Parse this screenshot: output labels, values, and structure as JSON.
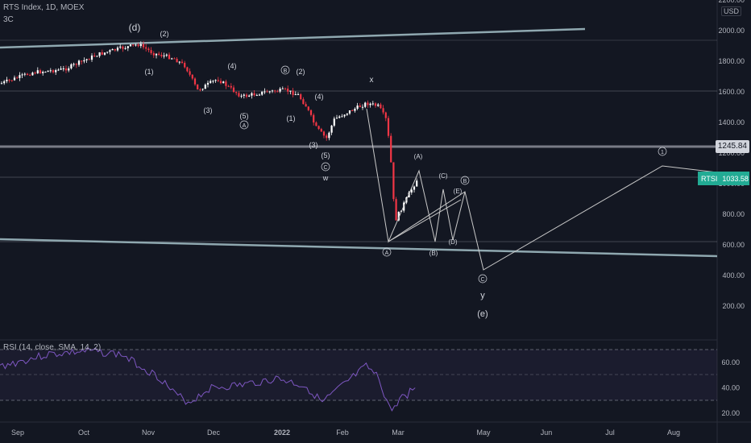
{
  "header": {
    "symbol_title": "RTS Index, 1D, MOEX",
    "indicator_tag": "3C",
    "currency": "USD",
    "rsi_label": "RSI (14, close, SMA, 14, 2)"
  },
  "price_axis": {
    "ticks": [
      "2200.00",
      "2000.00",
      "1800.00",
      "1600.00",
      "1400.00",
      "1200.00",
      "1000.00",
      "800.00",
      "600.00",
      "400.00",
      "200.00"
    ],
    "last_value_label": "1245.84",
    "symbol_badge": "RTSI",
    "symbol_price": "1033.58"
  },
  "rsi_axis": {
    "ticks": [
      "60.00",
      "40.00",
      "20.00"
    ]
  },
  "time_axis": {
    "labels": [
      "Sep",
      "Oct",
      "Nov",
      "Dec",
      "2022",
      "Feb",
      "Mar",
      "May",
      "Jun",
      "Jul",
      "Aug"
    ]
  },
  "wave_labels": [
    "(d)",
    "(2)",
    "(1)",
    "(4)",
    "(3)",
    "(5)",
    "A",
    "B",
    "(2)",
    "(1)",
    "(4)",
    "(3)",
    "(5)",
    "C",
    "w",
    "x",
    "(A)",
    "(C)",
    "B",
    "(E)",
    "(B)",
    "(D)",
    "A",
    "C",
    "y",
    "(e)",
    "1"
  ],
  "colors": {
    "background": "#131722",
    "up_candle": "#ffffff",
    "down_candle": "#f23645",
    "trend_line": "#8fa8b0",
    "rsi_line": "#7e57c2",
    "wave_path": "#c8c8c8",
    "badge_green": "#22ab94"
  },
  "chart_data": {
    "type": "candlestick",
    "title": "RTS Index, 1D, MOEX",
    "y_axis_range": [
      130,
      2200
    ],
    "approx_close_path": [
      {
        "x": "Sep",
        "y": 1680
      },
      {
        "x": "Oct",
        "y": 1790
      },
      {
        "x": "Oct (late)",
        "y": 1920
      },
      {
        "x": "Nov",
        "y": 1850
      },
      {
        "x": "Dec",
        "y": 1640
      },
      {
        "x": "2022",
        "y": 1600
      },
      {
        "x": "Jan (late)",
        "y": 1300
      },
      {
        "x": "Feb",
        "y": 1470
      },
      {
        "x": "Feb (late)",
        "y": 1540
      },
      {
        "x": "Mar (start)",
        "y": 760
      },
      {
        "x": "Mar",
        "y": 1033.58
      }
    ],
    "horizontal_levels": [
      1245.84,
      1600,
      1000,
      600
    ],
    "rsi": {
      "type": "line",
      "range": [
        10,
        75
      ],
      "levels": [
        70,
        50,
        30
      ]
    }
  }
}
